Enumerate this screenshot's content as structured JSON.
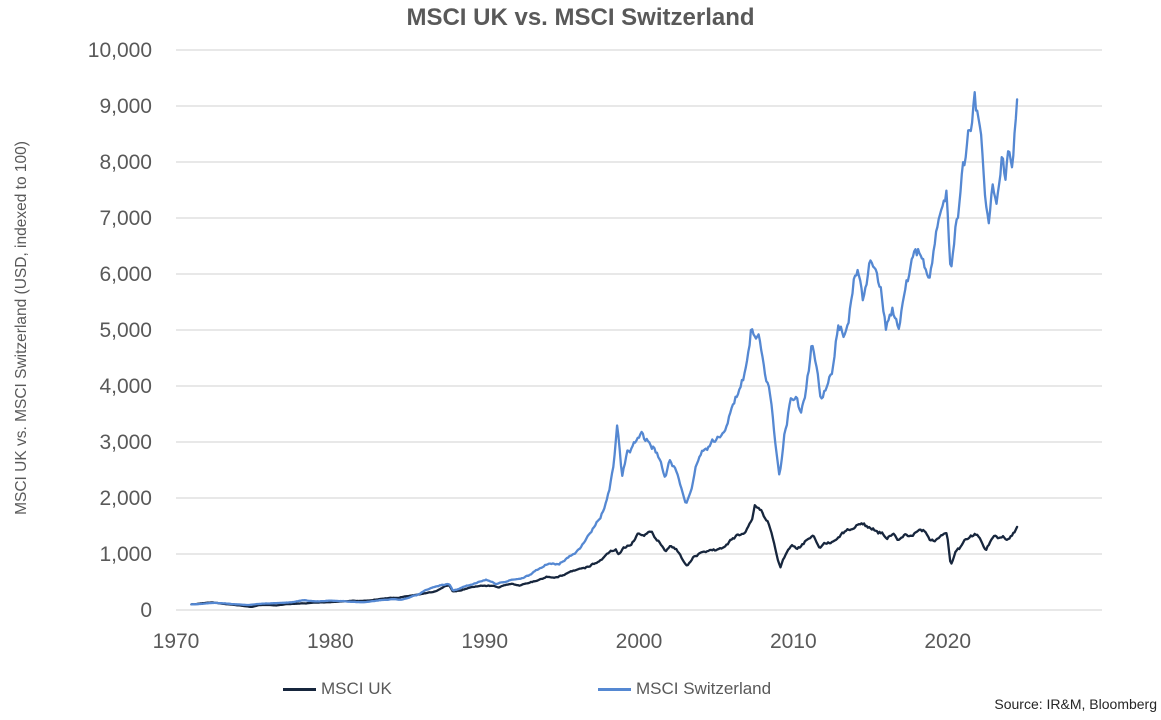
{
  "title": "MSCI UK vs. MSCI Switzerland",
  "source": "Source: IR&M, Bloomberg",
  "legend": {
    "position": "bottom",
    "items": [
      "MSCI UK",
      "MSCI Switzerland"
    ]
  },
  "chart_data": {
    "type": "line",
    "title": "MSCI UK vs. MSCI Switzerland",
    "xlabel": "",
    "ylabel": "MSCI UK vs. MSCI Switzerland (USD, indexed to 100)",
    "x_range": [
      1970,
      2030
    ],
    "y_range": [
      0,
      10000
    ],
    "x_ticks": [
      1970,
      1980,
      1990,
      2000,
      2010,
      2020
    ],
    "y_ticks": [
      0,
      1000,
      2000,
      3000,
      4000,
      5000,
      6000,
      7000,
      8000,
      9000,
      10000
    ],
    "y_tick_labels": [
      "0",
      "1,000",
      "2,000",
      "3,000",
      "4,000",
      "5,000",
      "6,000",
      "7,000",
      "8,000",
      "9,000",
      "10,000"
    ],
    "grid": "horizontal",
    "grid_color": "#d9d9d9",
    "legend_position": "bottom",
    "series": [
      {
        "name": "MSCI UK",
        "color": "#17263d",
        "points_format": "[year, index value, USD, indexed to 100]",
        "points": [
          [
            1971.0,
            100
          ],
          [
            1971.5,
            112
          ],
          [
            1972.0,
            128
          ],
          [
            1972.4,
            135
          ],
          [
            1973.0,
            115
          ],
          [
            1973.6,
            95
          ],
          [
            1974.2,
            78
          ],
          [
            1974.9,
            55
          ],
          [
            1975.4,
            88
          ],
          [
            1975.9,
            92
          ],
          [
            1976.5,
            82
          ],
          [
            1977.2,
            108
          ],
          [
            1977.8,
            112
          ],
          [
            1978.4,
            118
          ],
          [
            1979.0,
            132
          ],
          [
            1979.6,
            138
          ],
          [
            1980.2,
            142
          ],
          [
            1980.8,
            155
          ],
          [
            1981.4,
            165
          ],
          [
            1982.0,
            158
          ],
          [
            1982.6,
            172
          ],
          [
            1983.2,
            198
          ],
          [
            1983.8,
            210
          ],
          [
            1984.4,
            218
          ],
          [
            1985.0,
            245
          ],
          [
            1985.6,
            270
          ],
          [
            1986.2,
            300
          ],
          [
            1986.8,
            330
          ],
          [
            1987.4,
            420
          ],
          [
            1987.7,
            450
          ],
          [
            1987.95,
            330
          ],
          [
            1988.4,
            355
          ],
          [
            1989.0,
            395
          ],
          [
            1989.6,
            435
          ],
          [
            1990.1,
            425
          ],
          [
            1990.5,
            440
          ],
          [
            1990.9,
            410
          ],
          [
            1991.3,
            455
          ],
          [
            1991.8,
            460
          ],
          [
            1992.3,
            445
          ],
          [
            1992.8,
            475
          ],
          [
            1993.4,
            530
          ],
          [
            1994.0,
            590
          ],
          [
            1994.5,
            570
          ],
          [
            1995.0,
            620
          ],
          [
            1995.6,
            680
          ],
          [
            1996.2,
            720
          ],
          [
            1996.8,
            790
          ],
          [
            1997.4,
            870
          ],
          [
            1998.0,
            1000
          ],
          [
            1998.5,
            1080
          ],
          [
            1998.7,
            980
          ],
          [
            1999.0,
            1120
          ],
          [
            1999.5,
            1180
          ],
          [
            2000.0,
            1400
          ],
          [
            2000.3,
            1370
          ],
          [
            2000.7,
            1420
          ],
          [
            2001.0,
            1300
          ],
          [
            2001.4,
            1200
          ],
          [
            2001.7,
            1050
          ],
          [
            2002.0,
            1150
          ],
          [
            2002.4,
            1100
          ],
          [
            2002.8,
            920
          ],
          [
            2003.1,
            780
          ],
          [
            2003.5,
            920
          ],
          [
            2003.9,
            1000
          ],
          [
            2004.4,
            1030
          ],
          [
            2004.9,
            1080
          ],
          [
            2005.4,
            1120
          ],
          [
            2005.9,
            1230
          ],
          [
            2006.4,
            1330
          ],
          [
            2006.9,
            1400
          ],
          [
            2007.3,
            1600
          ],
          [
            2007.5,
            1880
          ],
          [
            2007.8,
            1780
          ],
          [
            2008.1,
            1650
          ],
          [
            2008.4,
            1550
          ],
          [
            2008.7,
            1250
          ],
          [
            2008.95,
            950
          ],
          [
            2009.15,
            760
          ],
          [
            2009.5,
            1000
          ],
          [
            2009.9,
            1150
          ],
          [
            2010.3,
            1120
          ],
          [
            2010.6,
            1180
          ],
          [
            2011.0,
            1280
          ],
          [
            2011.3,
            1320
          ],
          [
            2011.7,
            1100
          ],
          [
            2012.0,
            1180
          ],
          [
            2012.4,
            1200
          ],
          [
            2012.9,
            1280
          ],
          [
            2013.3,
            1400
          ],
          [
            2013.8,
            1450
          ],
          [
            2014.4,
            1570
          ],
          [
            2014.9,
            1480
          ],
          [
            2015.3,
            1450
          ],
          [
            2015.8,
            1350
          ],
          [
            2016.1,
            1280
          ],
          [
            2016.5,
            1340
          ],
          [
            2016.8,
            1230
          ],
          [
            2017.3,
            1330
          ],
          [
            2017.9,
            1370
          ],
          [
            2018.4,
            1430
          ],
          [
            2018.8,
            1280
          ],
          [
            2019.2,
            1230
          ],
          [
            2019.6,
            1340
          ],
          [
            2019.95,
            1400
          ],
          [
            2020.2,
            820
          ],
          [
            2020.5,
            1040
          ],
          [
            2020.8,
            1100
          ],
          [
            2021.1,
            1250
          ],
          [
            2021.5,
            1300
          ],
          [
            2021.8,
            1340
          ],
          [
            2022.1,
            1280
          ],
          [
            2022.45,
            1050
          ],
          [
            2022.75,
            1200
          ],
          [
            2023.0,
            1290
          ],
          [
            2023.3,
            1250
          ],
          [
            2023.6,
            1320
          ],
          [
            2023.9,
            1280
          ],
          [
            2024.1,
            1320
          ],
          [
            2024.5,
            1470
          ]
        ]
      },
      {
        "name": "MSCI Switzerland",
        "color": "#5588d2",
        "points_format": "[year, index value, USD, indexed to 100]",
        "points": [
          [
            1971.0,
            100
          ],
          [
            1971.5,
            105
          ],
          [
            1972.0,
            118
          ],
          [
            1972.5,
            128
          ],
          [
            1973.0,
            122
          ],
          [
            1973.5,
            112
          ],
          [
            1974.0,
            100
          ],
          [
            1974.7,
            88
          ],
          [
            1975.3,
            108
          ],
          [
            1976.0,
            118
          ],
          [
            1976.5,
            122
          ],
          [
            1977.0,
            128
          ],
          [
            1977.6,
            142
          ],
          [
            1978.3,
            178
          ],
          [
            1978.8,
            162
          ],
          [
            1979.3,
            158
          ],
          [
            1980.0,
            170
          ],
          [
            1980.6,
            163
          ],
          [
            1981.3,
            148
          ],
          [
            1982.0,
            140
          ],
          [
            1982.7,
            152
          ],
          [
            1983.3,
            180
          ],
          [
            1984.0,
            192
          ],
          [
            1984.6,
            185
          ],
          [
            1985.0,
            215
          ],
          [
            1985.6,
            265
          ],
          [
            1986.2,
            360
          ],
          [
            1986.8,
            420
          ],
          [
            1987.3,
            455
          ],
          [
            1987.7,
            480
          ],
          [
            1987.95,
            350
          ],
          [
            1988.4,
            385
          ],
          [
            1989.0,
            440
          ],
          [
            1989.6,
            505
          ],
          [
            1990.1,
            540
          ],
          [
            1990.5,
            510
          ],
          [
            1990.8,
            455
          ],
          [
            1991.2,
            505
          ],
          [
            1991.7,
            545
          ],
          [
            1992.2,
            565
          ],
          [
            1992.8,
            610
          ],
          [
            1993.4,
            720
          ],
          [
            1993.9,
            800
          ],
          [
            1994.3,
            845
          ],
          [
            1994.8,
            820
          ],
          [
            1995.3,
            920
          ],
          [
            1995.8,
            1010
          ],
          [
            1996.3,
            1160
          ],
          [
            1996.8,
            1340
          ],
          [
            1997.3,
            1560
          ],
          [
            1997.8,
            1850
          ],
          [
            1998.1,
            2150
          ],
          [
            1998.4,
            2700
          ],
          [
            1998.6,
            3270
          ],
          [
            1998.75,
            2800
          ],
          [
            1998.9,
            2400
          ],
          [
            1999.2,
            2750
          ],
          [
            1999.6,
            2900
          ],
          [
            2000.0,
            3050
          ],
          [
            2000.2,
            3150
          ],
          [
            2000.6,
            2950
          ],
          [
            2001.0,
            2850
          ],
          [
            2001.4,
            2650
          ],
          [
            2001.7,
            2350
          ],
          [
            2002.0,
            2650
          ],
          [
            2002.4,
            2500
          ],
          [
            2002.8,
            2150
          ],
          [
            2003.05,
            1850
          ],
          [
            2003.4,
            2150
          ],
          [
            2003.8,
            2700
          ],
          [
            2004.2,
            2900
          ],
          [
            2004.6,
            2950
          ],
          [
            2005.0,
            3050
          ],
          [
            2005.5,
            3150
          ],
          [
            2006.0,
            3650
          ],
          [
            2006.5,
            4000
          ],
          [
            2006.9,
            4300
          ],
          [
            2007.3,
            5000
          ],
          [
            2007.55,
            4800
          ],
          [
            2007.75,
            4950
          ],
          [
            2008.1,
            4300
          ],
          [
            2008.4,
            4000
          ],
          [
            2008.7,
            3400
          ],
          [
            2008.95,
            2700
          ],
          [
            2009.1,
            2400
          ],
          [
            2009.4,
            3100
          ],
          [
            2009.8,
            3700
          ],
          [
            2010.1,
            3900
          ],
          [
            2010.5,
            3500
          ],
          [
            2010.9,
            4100
          ],
          [
            2011.2,
            4750
          ],
          [
            2011.5,
            4300
          ],
          [
            2011.8,
            3750
          ],
          [
            2012.1,
            4000
          ],
          [
            2012.5,
            4350
          ],
          [
            2012.9,
            5050
          ],
          [
            2013.3,
            4850
          ],
          [
            2013.7,
            5400
          ],
          [
            2014.1,
            6050
          ],
          [
            2014.5,
            5600
          ],
          [
            2015.0,
            6230
          ],
          [
            2015.4,
            6000
          ],
          [
            2015.8,
            5500
          ],
          [
            2016.0,
            5050
          ],
          [
            2016.4,
            5400
          ],
          [
            2016.8,
            4950
          ],
          [
            2017.2,
            5700
          ],
          [
            2017.6,
            6200
          ],
          [
            2017.9,
            6350
          ],
          [
            2018.1,
            6450
          ],
          [
            2018.5,
            6050
          ],
          [
            2018.8,
            5750
          ],
          [
            2019.2,
            6550
          ],
          [
            2019.6,
            7000
          ],
          [
            2019.95,
            7400
          ],
          [
            2020.2,
            5950
          ],
          [
            2020.45,
            6700
          ],
          [
            2020.7,
            7100
          ],
          [
            2021.0,
            7900
          ],
          [
            2021.4,
            8500
          ],
          [
            2021.75,
            9180
          ],
          [
            2022.0,
            8800
          ],
          [
            2022.2,
            8400
          ],
          [
            2022.45,
            7500
          ],
          [
            2022.65,
            6850
          ],
          [
            2022.9,
            7600
          ],
          [
            2023.2,
            7300
          ],
          [
            2023.55,
            8300
          ],
          [
            2023.75,
            7950
          ],
          [
            2023.95,
            8350
          ],
          [
            2024.15,
            7900
          ],
          [
            2024.3,
            8400
          ],
          [
            2024.5,
            9130
          ]
        ]
      }
    ]
  }
}
